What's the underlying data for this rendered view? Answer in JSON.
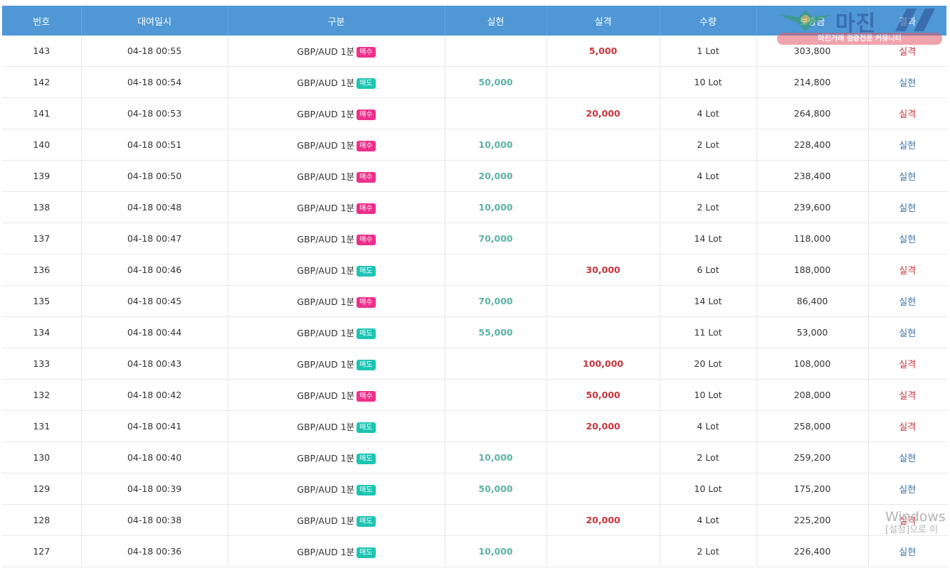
{
  "table": {
    "headers": [
      "번호",
      "대여일시",
      "구분",
      "실현",
      "실격",
      "수량",
      "보증금",
      "결과"
    ],
    "rows": [
      {
        "no": "143",
        "datetime": "04-18 00:55",
        "product": "GBP/AUD 1분",
        "side": "매수",
        "side_type": "buy",
        "profit": "",
        "loss": "5,000",
        "qty": "1 Lot",
        "deposit": "303,800",
        "result": "실격",
        "result_type": "loss"
      },
      {
        "no": "142",
        "datetime": "04-18 00:54",
        "product": "GBP/AUD 1분",
        "side": "매도",
        "side_type": "sell",
        "profit": "50,000",
        "loss": "",
        "qty": "10 Lot",
        "deposit": "214,800",
        "result": "실현",
        "result_type": "profit"
      },
      {
        "no": "141",
        "datetime": "04-18 00:53",
        "product": "GBP/AUD 1분",
        "side": "매수",
        "side_type": "buy",
        "profit": "",
        "loss": "20,000",
        "qty": "4 Lot",
        "deposit": "264,800",
        "result": "실격",
        "result_type": "loss"
      },
      {
        "no": "140",
        "datetime": "04-18 00:51",
        "product": "GBP/AUD 1분",
        "side": "매수",
        "side_type": "buy",
        "profit": "10,000",
        "loss": "",
        "qty": "2 Lot",
        "deposit": "228,400",
        "result": "실현",
        "result_type": "profit"
      },
      {
        "no": "139",
        "datetime": "04-18 00:50",
        "product": "GBP/AUD 1분",
        "side": "매수",
        "side_type": "buy",
        "profit": "20,000",
        "loss": "",
        "qty": "4 Lot",
        "deposit": "238,400",
        "result": "실현",
        "result_type": "profit"
      },
      {
        "no": "138",
        "datetime": "04-18 00:48",
        "product": "GBP/AUD 1분",
        "side": "매수",
        "side_type": "buy",
        "profit": "10,000",
        "loss": "",
        "qty": "2 Lot",
        "deposit": "239,600",
        "result": "실현",
        "result_type": "profit"
      },
      {
        "no": "137",
        "datetime": "04-18 00:47",
        "product": "GBP/AUD 1분",
        "side": "매수",
        "side_type": "buy",
        "profit": "70,000",
        "loss": "",
        "qty": "14 Lot",
        "deposit": "118,000",
        "result": "실현",
        "result_type": "profit"
      },
      {
        "no": "136",
        "datetime": "04-18 00:46",
        "product": "GBP/AUD 1분",
        "side": "매도",
        "side_type": "sell",
        "profit": "",
        "loss": "30,000",
        "qty": "6 Lot",
        "deposit": "188,000",
        "result": "실격",
        "result_type": "loss"
      },
      {
        "no": "135",
        "datetime": "04-18 00:45",
        "product": "GBP/AUD 1분",
        "side": "매수",
        "side_type": "buy",
        "profit": "70,000",
        "loss": "",
        "qty": "14 Lot",
        "deposit": "86,400",
        "result": "실현",
        "result_type": "profit"
      },
      {
        "no": "134",
        "datetime": "04-18 00:44",
        "product": "GBP/AUD 1분",
        "side": "매도",
        "side_type": "sell",
        "profit": "55,000",
        "loss": "",
        "qty": "11 Lot",
        "deposit": "53,000",
        "result": "실현",
        "result_type": "profit"
      },
      {
        "no": "133",
        "datetime": "04-18 00:43",
        "product": "GBP/AUD 1분",
        "side": "매도",
        "side_type": "sell",
        "profit": "",
        "loss": "100,000",
        "qty": "20 Lot",
        "deposit": "108,000",
        "result": "실격",
        "result_type": "loss"
      },
      {
        "no": "132",
        "datetime": "04-18 00:42",
        "product": "GBP/AUD 1분",
        "side": "매수",
        "side_type": "buy",
        "profit": "",
        "loss": "50,000",
        "qty": "10 Lot",
        "deposit": "208,000",
        "result": "실격",
        "result_type": "loss"
      },
      {
        "no": "131",
        "datetime": "04-18 00:41",
        "product": "GBP/AUD 1분",
        "side": "매도",
        "side_type": "sell",
        "profit": "",
        "loss": "20,000",
        "qty": "4 Lot",
        "deposit": "258,000",
        "result": "실격",
        "result_type": "loss"
      },
      {
        "no": "130",
        "datetime": "04-18 00:40",
        "product": "GBP/AUD 1분",
        "side": "매도",
        "side_type": "sell",
        "profit": "10,000",
        "loss": "",
        "qty": "2 Lot",
        "deposit": "259,200",
        "result": "실현",
        "result_type": "profit"
      },
      {
        "no": "129",
        "datetime": "04-18 00:39",
        "product": "GBP/AUD 1분",
        "side": "매도",
        "side_type": "sell",
        "profit": "50,000",
        "loss": "",
        "qty": "10 Lot",
        "deposit": "175,200",
        "result": "실현",
        "result_type": "profit"
      },
      {
        "no": "128",
        "datetime": "04-18 00:38",
        "product": "GBP/AUD 1분",
        "side": "매도",
        "side_type": "sell",
        "profit": "",
        "loss": "20,000",
        "qty": "4 Lot",
        "deposit": "225,200",
        "result": "실격",
        "result_type": "loss"
      },
      {
        "no": "127",
        "datetime": "04-18 00:36",
        "product": "GBP/AUD 1분",
        "side": "매도",
        "side_type": "sell",
        "profit": "10,000",
        "loss": "",
        "qty": "2 Lot",
        "deposit": "226,400",
        "result": "실현",
        "result_type": "profit"
      }
    ]
  },
  "watermark": {
    "main": "마진",
    "tagline": "마진거래 검증전문 커뮤니티"
  },
  "activation": {
    "title": "Windows",
    "subtitle": "[설정]으로 이"
  },
  "colors": {
    "header_bg": "#4f97d5",
    "profit": "#5bb3a3",
    "loss": "#c8343b",
    "result_profit": "#3b74a7",
    "buy_badge": "#ee2f8c",
    "sell_badge": "#1cc4b4"
  }
}
